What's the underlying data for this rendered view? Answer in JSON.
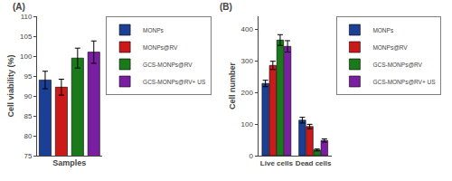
{
  "chart_data": [
    {
      "type": "bar",
      "xlabel": "Samples",
      "ylabel": "Cell viability (%)",
      "categories": [
        "MONPs",
        "MONPs@RV",
        "GCS-MONPs@RV",
        "GCS-MONPs@RV+ US"
      ],
      "values": [
        94.0,
        92.2,
        99.5,
        101.0
      ],
      "errors": [
        2.2,
        2.0,
        2.5,
        2.8
      ],
      "colors": [
        "#1c3f96",
        "#cc1a1a",
        "#1a7a1a",
        "#7b1fa2"
      ],
      "ylim": [
        75,
        110
      ],
      "yticks": [
        75,
        80,
        85,
        90,
        95,
        100,
        105,
        110
      ],
      "grid": false,
      "legend": "right",
      "tick_labels": "y",
      "annotations": [
        "(A)"
      ]
    },
    {
      "type": "bar",
      "ylabel": "Cell number",
      "categories": [
        "Live cells",
        "Dead cells"
      ],
      "series": [
        {
          "name": "MONPs",
          "color": "#1c3f96",
          "values": [
            228,
            112
          ],
          "errors": [
            10,
            9
          ]
        },
        {
          "name": "MONPs@RV",
          "color": "#cc1a1a",
          "values": [
            285,
            92
          ],
          "errors": [
            13,
            7
          ]
        },
        {
          "name": "GCS-MONPs@RV",
          "color": "#1a7a1a",
          "values": [
            365,
            18
          ],
          "errors": [
            17,
            3
          ]
        },
        {
          "name": "GCS-MONPs@RV+ US",
          "color": "#7b1fa2",
          "values": [
            345,
            48
          ],
          "errors": [
            18,
            5
          ]
        }
      ],
      "ylim": [
        0,
        440
      ],
      "yticks": [
        0,
        100,
        200,
        300,
        400
      ],
      "grid": false,
      "legend": "right",
      "annotations": [
        "(B)"
      ]
    }
  ]
}
